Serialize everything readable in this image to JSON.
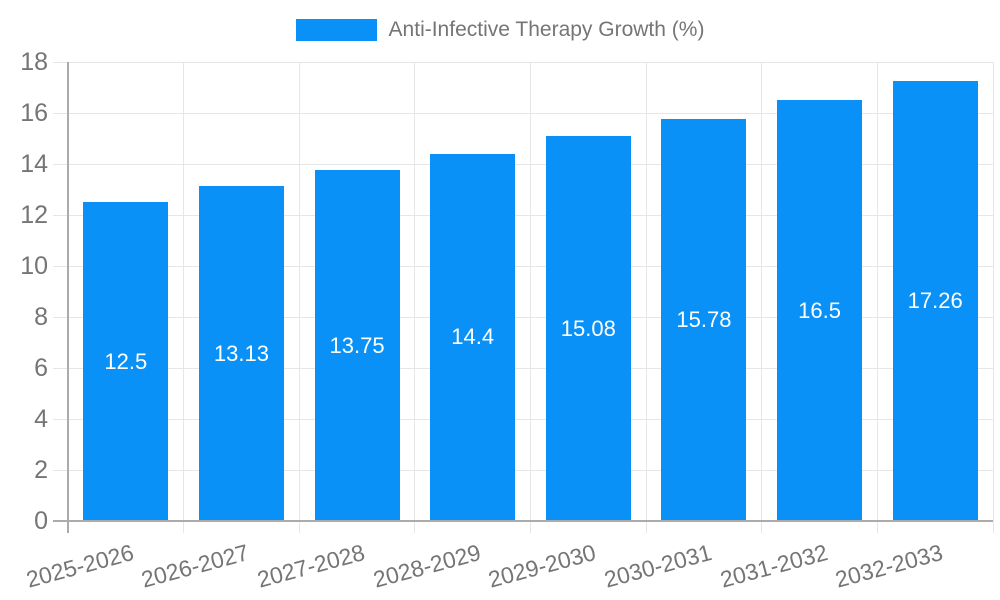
{
  "legend": {
    "label": "Anti-Infective Therapy Growth (%)"
  },
  "colors": {
    "bar": "#0a91f7",
    "bar_label": "#ffffff",
    "axis_text": "#757575",
    "grid": "#e6e6e6",
    "axis_line": "#ababab",
    "background": "#ffffff"
  },
  "chart_data": {
    "type": "bar",
    "title": "",
    "legend_entries": [
      "Anti-Infective Therapy Growth (%)"
    ],
    "legend_position": "top",
    "categories": [
      "2025-2026",
      "2026-2027",
      "2027-2028",
      "2028-2029",
      "2029-2030",
      "2030-2031",
      "2031-2032",
      "2032-2033"
    ],
    "values": [
      12.5,
      13.13,
      13.75,
      14.4,
      15.08,
      15.78,
      16.5,
      17.26
    ],
    "value_labels": [
      "12.5",
      "13.13",
      "13.75",
      "14.4",
      "15.08",
      "15.78",
      "16.5",
      "17.26"
    ],
    "xlabel": "",
    "ylabel": "",
    "ylim": [
      0,
      18
    ],
    "yticks": [
      0,
      2,
      4,
      6,
      8,
      10,
      12,
      14,
      16,
      18
    ],
    "grid": true,
    "x_label_rotation_deg": -15
  }
}
